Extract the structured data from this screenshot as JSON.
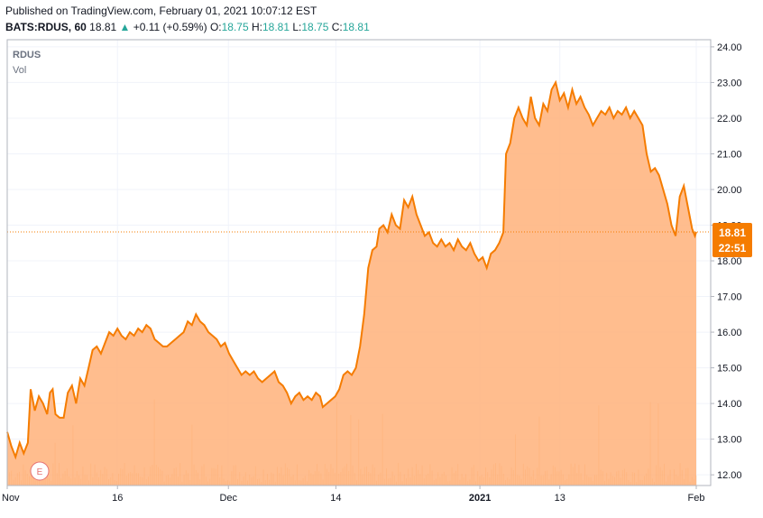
{
  "header": {
    "published": "Published on TradingView.com, February 01, 2021 10:07:12 EST",
    "symbol": "BATS:RDUS, 60",
    "last": "18.81",
    "arrow": "▲",
    "change": "+0.11 (+0.59%)",
    "o_label": "O:",
    "o_value": "18.75",
    "h_label": "H:",
    "h_value": "18.81",
    "l_label": "L:",
    "l_value": "18.75",
    "c_label": "C:",
    "c_value": "18.81"
  },
  "legend": {
    "symbol": "RDUS",
    "volume": "Vol"
  },
  "price_badge": {
    "price": "18.81",
    "countdown": "22:51"
  },
  "earnings_marker": "E",
  "colors": {
    "line": "#f57c00",
    "fill": "#ffb27a",
    "axis": "#b2b5be",
    "badge": "#f57c00",
    "volume": "#f7a35c"
  },
  "chart_data": {
    "type": "area",
    "ylim": [
      11.7,
      24.2
    ],
    "y_ticks": [
      "24.00",
      "23.00",
      "22.00",
      "21.00",
      "20.00",
      "19.00",
      "18.00",
      "17.00",
      "16.00",
      "15.00",
      "14.00",
      "13.00",
      "12.00"
    ],
    "x_ticks": [
      {
        "label": "Nov",
        "t": 0.0
      },
      {
        "label": "16",
        "t": 0.16
      },
      {
        "label": "Dec",
        "t": 0.321
      },
      {
        "label": "14",
        "t": 0.477
      },
      {
        "label": "2021",
        "t": 0.686
      },
      {
        "label": "13",
        "t": 0.802
      },
      {
        "label": "Feb",
        "t": 1.0
      }
    ],
    "series": [
      {
        "values": [
          [
            0.0,
            13.2
          ],
          [
            0.006,
            12.8
          ],
          [
            0.012,
            12.5
          ],
          [
            0.018,
            12.9
          ],
          [
            0.024,
            12.6
          ],
          [
            0.03,
            12.9
          ],
          [
            0.034,
            14.4
          ],
          [
            0.04,
            13.8
          ],
          [
            0.046,
            14.2
          ],
          [
            0.052,
            14.0
          ],
          [
            0.058,
            13.7
          ],
          [
            0.062,
            14.3
          ],
          [
            0.066,
            14.4
          ],
          [
            0.07,
            13.7
          ],
          [
            0.076,
            13.6
          ],
          [
            0.082,
            13.6
          ],
          [
            0.088,
            14.3
          ],
          [
            0.094,
            14.5
          ],
          [
            0.1,
            14.0
          ],
          [
            0.106,
            14.7
          ],
          [
            0.112,
            14.5
          ],
          [
            0.118,
            15.0
          ],
          [
            0.124,
            15.5
          ],
          [
            0.13,
            15.6
          ],
          [
            0.136,
            15.4
          ],
          [
            0.142,
            15.7
          ],
          [
            0.148,
            16.0
          ],
          [
            0.154,
            15.9
          ],
          [
            0.16,
            16.1
          ],
          [
            0.166,
            15.9
          ],
          [
            0.172,
            15.8
          ],
          [
            0.178,
            16.0
          ],
          [
            0.184,
            15.9
          ],
          [
            0.19,
            16.1
          ],
          [
            0.196,
            16.0
          ],
          [
            0.202,
            16.2
          ],
          [
            0.208,
            16.1
          ],
          [
            0.214,
            15.8
          ],
          [
            0.22,
            15.7
          ],
          [
            0.226,
            15.6
          ],
          [
            0.232,
            15.6
          ],
          [
            0.238,
            15.7
          ],
          [
            0.244,
            15.8
          ],
          [
            0.25,
            15.9
          ],
          [
            0.256,
            16.0
          ],
          [
            0.262,
            16.3
          ],
          [
            0.268,
            16.2
          ],
          [
            0.274,
            16.5
          ],
          [
            0.28,
            16.3
          ],
          [
            0.286,
            16.2
          ],
          [
            0.292,
            16.0
          ],
          [
            0.298,
            15.9
          ],
          [
            0.304,
            15.8
          ],
          [
            0.31,
            15.6
          ],
          [
            0.316,
            15.7
          ],
          [
            0.322,
            15.4
          ],
          [
            0.328,
            15.2
          ],
          [
            0.334,
            15.0
          ],
          [
            0.34,
            14.8
          ],
          [
            0.346,
            14.9
          ],
          [
            0.352,
            14.8
          ],
          [
            0.358,
            14.9
          ],
          [
            0.364,
            14.7
          ],
          [
            0.37,
            14.6
          ],
          [
            0.376,
            14.7
          ],
          [
            0.382,
            14.8
          ],
          [
            0.388,
            14.9
          ],
          [
            0.394,
            14.6
          ],
          [
            0.4,
            14.5
          ],
          [
            0.406,
            14.3
          ],
          [
            0.412,
            14.0
          ],
          [
            0.418,
            14.2
          ],
          [
            0.424,
            14.3
          ],
          [
            0.43,
            14.1
          ],
          [
            0.436,
            14.2
          ],
          [
            0.442,
            14.1
          ],
          [
            0.448,
            14.3
          ],
          [
            0.454,
            14.2
          ],
          [
            0.458,
            13.9
          ],
          [
            0.464,
            14.0
          ],
          [
            0.47,
            14.1
          ],
          [
            0.476,
            14.2
          ],
          [
            0.482,
            14.4
          ],
          [
            0.488,
            14.8
          ],
          [
            0.494,
            14.9
          ],
          [
            0.5,
            14.8
          ],
          [
            0.506,
            15.0
          ],
          [
            0.512,
            15.6
          ],
          [
            0.518,
            16.5
          ],
          [
            0.524,
            17.8
          ],
          [
            0.53,
            18.3
          ],
          [
            0.536,
            18.4
          ],
          [
            0.54,
            18.9
          ],
          [
            0.546,
            19.0
          ],
          [
            0.552,
            18.8
          ],
          [
            0.558,
            19.3
          ],
          [
            0.564,
            19.0
          ],
          [
            0.57,
            18.9
          ],
          [
            0.576,
            19.7
          ],
          [
            0.582,
            19.5
          ],
          [
            0.588,
            19.8
          ],
          [
            0.594,
            19.3
          ],
          [
            0.6,
            19.0
          ],
          [
            0.606,
            18.7
          ],
          [
            0.612,
            18.8
          ],
          [
            0.618,
            18.5
          ],
          [
            0.624,
            18.4
          ],
          [
            0.63,
            18.6
          ],
          [
            0.636,
            18.4
          ],
          [
            0.642,
            18.5
          ],
          [
            0.648,
            18.3
          ],
          [
            0.654,
            18.6
          ],
          [
            0.66,
            18.4
          ],
          [
            0.666,
            18.3
          ],
          [
            0.672,
            18.5
          ],
          [
            0.678,
            18.2
          ],
          [
            0.684,
            18.0
          ],
          [
            0.69,
            18.1
          ],
          [
            0.696,
            17.8
          ],
          [
            0.702,
            18.2
          ],
          [
            0.708,
            18.3
          ],
          [
            0.714,
            18.5
          ],
          [
            0.72,
            18.8
          ],
          [
            0.724,
            21.0
          ],
          [
            0.73,
            21.3
          ],
          [
            0.736,
            22.0
          ],
          [
            0.742,
            22.3
          ],
          [
            0.748,
            22.0
          ],
          [
            0.754,
            21.8
          ],
          [
            0.76,
            22.6
          ],
          [
            0.766,
            22.0
          ],
          [
            0.772,
            21.8
          ],
          [
            0.778,
            22.4
          ],
          [
            0.784,
            22.2
          ],
          [
            0.79,
            22.8
          ],
          [
            0.796,
            23.0
          ],
          [
            0.802,
            22.5
          ],
          [
            0.808,
            22.7
          ],
          [
            0.814,
            22.3
          ],
          [
            0.82,
            22.8
          ],
          [
            0.826,
            22.4
          ],
          [
            0.832,
            22.6
          ],
          [
            0.838,
            22.3
          ],
          [
            0.844,
            22.1
          ],
          [
            0.85,
            21.8
          ],
          [
            0.856,
            22.0
          ],
          [
            0.862,
            22.2
          ],
          [
            0.868,
            22.1
          ],
          [
            0.874,
            22.3
          ],
          [
            0.88,
            22.0
          ],
          [
            0.886,
            22.2
          ],
          [
            0.892,
            22.1
          ],
          [
            0.898,
            22.3
          ],
          [
            0.904,
            22.0
          ],
          [
            0.91,
            22.2
          ],
          [
            0.916,
            22.0
          ],
          [
            0.922,
            21.8
          ],
          [
            0.928,
            21.0
          ],
          [
            0.934,
            20.5
          ],
          [
            0.94,
            20.6
          ],
          [
            0.946,
            20.4
          ],
          [
            0.952,
            20.0
          ],
          [
            0.958,
            19.6
          ],
          [
            0.964,
            19.0
          ],
          [
            0.97,
            18.7
          ],
          [
            0.976,
            19.8
          ],
          [
            0.982,
            20.1
          ],
          [
            0.988,
            19.5
          ],
          [
            0.994,
            18.9
          ],
          [
            0.998,
            18.7
          ],
          [
            1.0,
            18.81
          ]
        ]
      }
    ]
  }
}
